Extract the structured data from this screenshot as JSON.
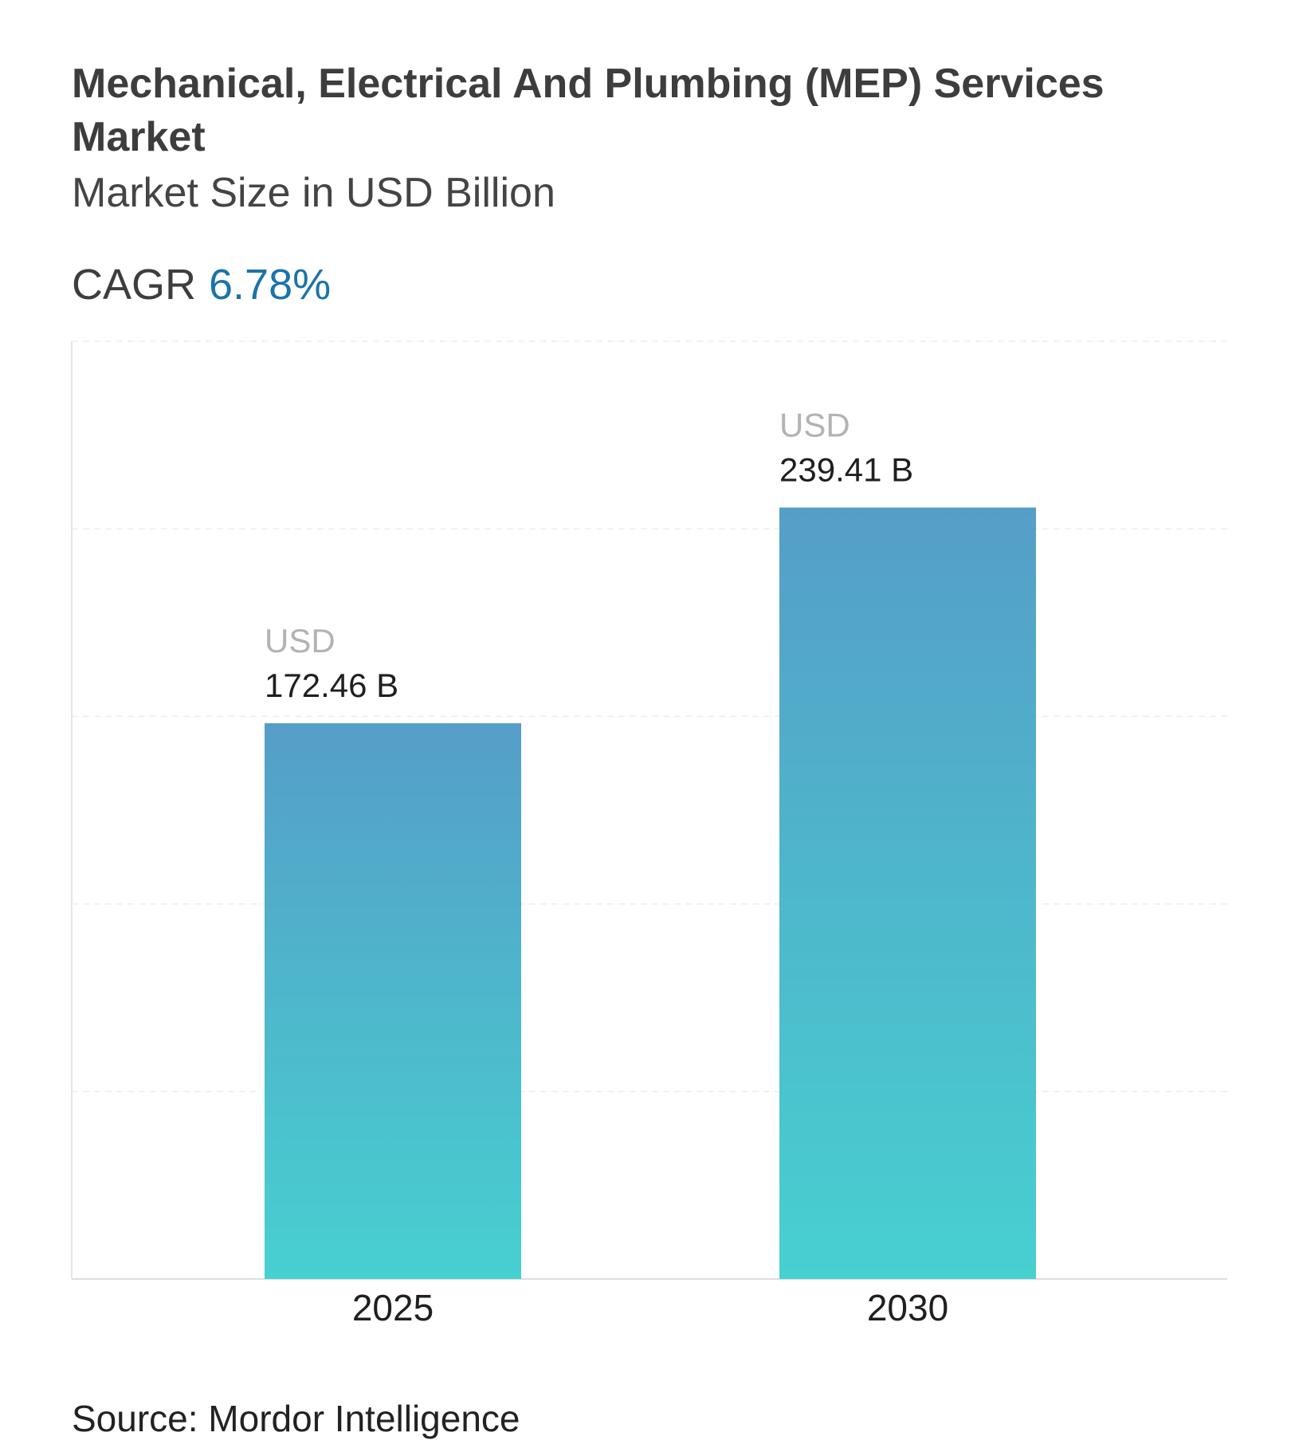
{
  "chart_data": {
    "type": "bar",
    "title": "Mechanical, Electrical And Plumbing (MEP) Services Market",
    "subtitle": "Market Size in USD Billion",
    "cagr_label": "CAGR",
    "cagr_value": "6.78%",
    "categories": [
      "2025",
      "2030"
    ],
    "values": [
      172.46,
      239.41
    ],
    "value_prefix": "USD",
    "value_labels": [
      "172.46 B",
      "239.41 B"
    ],
    "color": [
      "#559ec8",
      "#47d0d0"
    ],
    "ylim": [
      0,
      291
    ],
    "grid": true,
    "source": "Source: Mordor Intelligence"
  }
}
